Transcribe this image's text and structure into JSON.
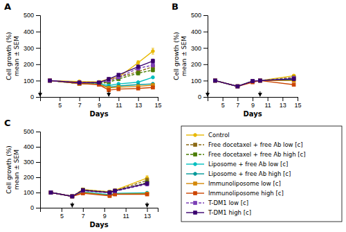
{
  "chart_data": [
    {
      "type": "line",
      "title": "A",
      "xlabel": "Days",
      "ylabel": "Cell growth (%)\nmean ± SEM",
      "x": [
        4,
        7,
        9,
        10,
        11,
        13,
        14.5
      ],
      "xlim": [
        3,
        15
      ],
      "xticks": [
        5,
        7,
        9,
        11,
        13,
        15
      ],
      "ylim": [
        0,
        500
      ],
      "yticks": [
        0,
        100,
        200,
        300,
        400,
        500
      ],
      "arrows_x": [
        3,
        10
      ],
      "series": [
        {
          "name": "Control",
          "color": "#E8B800",
          "marker": "circle",
          "line_style": "solid",
          "values": [
            100,
            95,
            92,
            110,
            120,
            210,
            280
          ],
          "errors": [
            4,
            4,
            4,
            5,
            6,
            12,
            18
          ]
        },
        {
          "name": "Free docetaxel + free Ab low [c]",
          "color": "#8B6914",
          "marker": "square",
          "line_style": "dashed",
          "values": [
            100,
            82,
            82,
            100,
            120,
            155,
            185
          ],
          "errors": [
            4,
            4,
            4,
            5,
            6,
            10,
            12
          ]
        },
        {
          "name": "Free docetaxel + free Ab high [c]",
          "color": "#4A7C00",
          "marker": "square",
          "line_style": "dashed",
          "values": [
            100,
            82,
            82,
            90,
            110,
            145,
            165
          ],
          "errors": [
            4,
            4,
            4,
            5,
            6,
            10,
            12
          ]
        },
        {
          "name": "Liposome + free Ab low [c]",
          "color": "#00BFBF",
          "marker": "circle",
          "line_style": "solid",
          "values": [
            100,
            82,
            80,
            70,
            80,
            90,
            120
          ],
          "errors": [
            4,
            4,
            4,
            4,
            5,
            5,
            6
          ]
        },
        {
          "name": "Liposome + free Ab high [c]",
          "color": "#009999",
          "marker": "circle",
          "line_style": "solid",
          "values": [
            100,
            82,
            78,
            60,
            68,
            75,
            80
          ],
          "errors": [
            4,
            4,
            4,
            4,
            5,
            5,
            6
          ]
        },
        {
          "name": "Immunoliposome low [c]",
          "color": "#D4890A",
          "marker": "square",
          "line_style": "solid",
          "values": [
            100,
            82,
            78,
            55,
            60,
            65,
            72
          ],
          "errors": [
            4,
            4,
            4,
            4,
            4,
            4,
            5
          ]
        },
        {
          "name": "Immunoliposome high [c]",
          "color": "#CC4400",
          "marker": "square",
          "line_style": "solid",
          "values": [
            100,
            82,
            75,
            42,
            48,
            52,
            58
          ],
          "errors": [
            4,
            4,
            4,
            4,
            4,
            4,
            5
          ]
        },
        {
          "name": "T-DM1 low [c]",
          "color": "#7B3FB5",
          "marker": "square",
          "line_style": "dashed",
          "values": [
            100,
            88,
            88,
            100,
            120,
            175,
            195
          ],
          "errors": [
            4,
            4,
            4,
            5,
            6,
            10,
            12
          ]
        },
        {
          "name": "T-DM1 high [c]",
          "color": "#3A006F",
          "marker": "square",
          "line_style": "solid",
          "values": [
            100,
            88,
            88,
            110,
            135,
            185,
            220
          ],
          "errors": [
            4,
            4,
            4,
            5,
            6,
            10,
            12
          ]
        }
      ]
    },
    {
      "type": "line",
      "title": "B",
      "xlabel": "Days",
      "ylabel": "Cell growth (%)\nmean ± SEM",
      "x": [
        4,
        7,
        9,
        10,
        14.5
      ],
      "xlim": [
        3,
        15
      ],
      "xticks": [
        5,
        7,
        9,
        11,
        13,
        15
      ],
      "ylim": [
        0,
        500
      ],
      "yticks": [
        0,
        100,
        200,
        300,
        400,
        500
      ],
      "arrows_x": [
        3,
        10
      ],
      "series": [
        {
          "name": "Control",
          "color": "#E8B800",
          "marker": "circle",
          "line_style": "solid",
          "values": [
            100,
            65,
            97,
            100,
            130
          ],
          "errors": [
            4,
            4,
            4,
            4,
            8
          ]
        },
        {
          "name": "Free docetaxel + free Ab low [c]",
          "color": "#8B6914",
          "marker": "square",
          "line_style": "dashed",
          "values": [
            100,
            65,
            97,
            100,
            120
          ],
          "errors": [
            4,
            4,
            4,
            4,
            8
          ]
        },
        {
          "name": "Free docetaxel + free Ab high [c]",
          "color": "#4A7C00",
          "marker": "square",
          "line_style": "dashed",
          "values": [
            100,
            65,
            97,
            100,
            115
          ],
          "errors": [
            4,
            4,
            4,
            4,
            8
          ]
        },
        {
          "name": "Liposome + free Ab low [c]",
          "color": "#00BFBF",
          "marker": "circle",
          "line_style": "solid",
          "values": [
            100,
            65,
            97,
            100,
            110
          ],
          "errors": [
            4,
            4,
            4,
            4,
            8
          ]
        },
        {
          "name": "Liposome + free Ab high [c]",
          "color": "#009999",
          "marker": "circle",
          "line_style": "solid",
          "values": [
            100,
            65,
            97,
            100,
            105
          ],
          "errors": [
            4,
            4,
            4,
            4,
            8
          ]
        },
        {
          "name": "Immunoliposome low [c]",
          "color": "#D4890A",
          "marker": "square",
          "line_style": "solid",
          "values": [
            100,
            65,
            97,
            100,
            100
          ],
          "errors": [
            4,
            4,
            4,
            4,
            8
          ]
        },
        {
          "name": "Immunoliposome high [c]",
          "color": "#CC4400",
          "marker": "square",
          "line_style": "solid",
          "values": [
            100,
            65,
            90,
            100,
            75
          ],
          "errors": [
            4,
            4,
            4,
            4,
            8
          ]
        },
        {
          "name": "T-DM1 low [c]",
          "color": "#7B3FB5",
          "marker": "square",
          "line_style": "dashed",
          "values": [
            100,
            65,
            97,
            100,
            115
          ],
          "errors": [
            4,
            4,
            4,
            4,
            8
          ]
        },
        {
          "name": "T-DM1 high [c]",
          "color": "#3A006F",
          "marker": "square",
          "line_style": "solid",
          "values": [
            100,
            65,
            97,
            100,
            110
          ],
          "errors": [
            4,
            4,
            4,
            4,
            8
          ]
        }
      ]
    },
    {
      "type": "line",
      "title": "C",
      "xlabel": "Days",
      "ylabel": "Cell growth (%)\nmean ± SEM",
      "x": [
        4,
        6,
        7,
        9.5,
        10,
        13
      ],
      "xlim": [
        3,
        14
      ],
      "xticks": [
        5,
        7,
        9,
        11,
        13
      ],
      "ylim": [
        0,
        500
      ],
      "yticks": [
        0,
        100,
        200,
        300,
        400,
        500
      ],
      "arrows_x": [
        6,
        13
      ],
      "series": [
        {
          "name": "Control",
          "color": "#E8B800",
          "marker": "circle",
          "line_style": "solid",
          "values": [
            100,
            75,
            120,
            105,
            115,
            195
          ],
          "errors": [
            4,
            4,
            6,
            6,
            6,
            15
          ]
        },
        {
          "name": "Free docetaxel + free Ab low [c]",
          "color": "#8B6914",
          "marker": "square",
          "line_style": "dashed",
          "values": [
            100,
            75,
            118,
            103,
            112,
            180
          ],
          "errors": [
            4,
            4,
            6,
            6,
            6,
            14
          ]
        },
        {
          "name": "Free docetaxel + free Ab high [c]",
          "color": "#4A7C00",
          "marker": "square",
          "line_style": "dashed",
          "values": [
            100,
            75,
            115,
            100,
            108,
            165
          ],
          "errors": [
            4,
            4,
            6,
            6,
            6,
            13
          ]
        },
        {
          "name": "Liposome + free Ab low [c]",
          "color": "#00BFBF",
          "marker": "circle",
          "line_style": "solid",
          "values": [
            100,
            75,
            105,
            85,
            95,
            98
          ],
          "errors": [
            4,
            4,
            5,
            5,
            5,
            5
          ]
        },
        {
          "name": "Liposome + free Ab high [c]",
          "color": "#009999",
          "marker": "circle",
          "line_style": "solid",
          "values": [
            100,
            75,
            100,
            83,
            92,
            95
          ],
          "errors": [
            4,
            4,
            5,
            5,
            5,
            5
          ]
        },
        {
          "name": "Immunoliposome low [c]",
          "color": "#D4890A",
          "marker": "square",
          "line_style": "solid",
          "values": [
            100,
            75,
            100,
            80,
            90,
            92
          ],
          "errors": [
            4,
            4,
            5,
            5,
            5,
            5
          ]
        },
        {
          "name": "Immunoliposome high [c]",
          "color": "#CC4400",
          "marker": "square",
          "line_style": "solid",
          "values": [
            100,
            75,
            95,
            78,
            88,
            88
          ],
          "errors": [
            4,
            4,
            5,
            5,
            5,
            5
          ]
        },
        {
          "name": "T-DM1 low [c]",
          "color": "#7B3FB5",
          "marker": "square",
          "line_style": "dashed",
          "values": [
            100,
            75,
            112,
            98,
            108,
            155
          ],
          "errors": [
            4,
            4,
            6,
            6,
            6,
            12
          ]
        },
        {
          "name": "T-DM1 high [c]",
          "color": "#3A006F",
          "marker": "square",
          "line_style": "solid",
          "values": [
            100,
            75,
            115,
            100,
            112,
            160
          ],
          "errors": [
            4,
            4,
            6,
            6,
            6,
            12
          ]
        }
      ]
    }
  ]
}
